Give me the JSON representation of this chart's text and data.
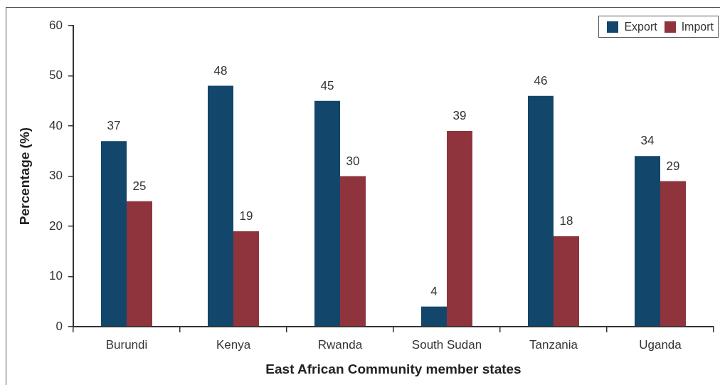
{
  "chart_data": {
    "type": "bar",
    "xlabel": "East African Community member states",
    "ylabel": "Percentage (%)",
    "categories": [
      "Burundi",
      "Kenya",
      "Rwanda",
      "South Sudan",
      "Tanzania",
      "Uganda"
    ],
    "series": [
      {
        "name": "Export",
        "color": "#12466b",
        "values": [
          37,
          48,
          45,
          4,
          46,
          34
        ]
      },
      {
        "name": "Import",
        "color": "#8f343c",
        "values": [
          25,
          19,
          30,
          39,
          18,
          29
        ]
      }
    ],
    "ylim": [
      0,
      60
    ],
    "yticks": [
      0,
      10,
      20,
      30,
      40,
      50,
      60
    ],
    "data_labels": true,
    "legend": "top right"
  }
}
